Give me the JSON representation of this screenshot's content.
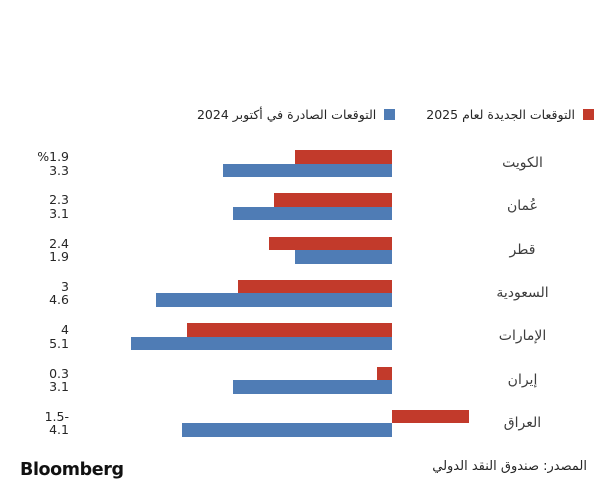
{
  "chart_data": {
    "type": "bar",
    "orientation": "horizontal",
    "direction": "rtl",
    "unit": "%",
    "title": "",
    "categories": [
      "الكويت",
      "عُمان",
      "قطر",
      "السعودية",
      "الإمارات",
      "إيران",
      "العراق"
    ],
    "series": [
      {
        "name": "التوقعات الجديدة لعام 2025",
        "color": "#c23a2b",
        "values": [
          1.9,
          2.3,
          2.4,
          3,
          4,
          0.3,
          -1.5
        ],
        "labels": [
          "%1.9",
          "2.3",
          "2.4",
          "3",
          "4",
          "0.3",
          "1.5-"
        ]
      },
      {
        "name": "التوقعات الصادرة في أكتوبر 2024",
        "color": "#4f7cb5",
        "values": [
          3.3,
          3.1,
          1.9,
          4.6,
          5.1,
          3.1,
          4.1
        ],
        "labels": [
          "3.3",
          "3.1",
          "1.9",
          "4.6",
          "5.1",
          "3.1",
          "4.1"
        ]
      }
    ],
    "xlim": [
      -1.6,
      5.2
    ],
    "baseline": 0,
    "grid": false,
    "legend_position": "top-right"
  },
  "footer": {
    "brand": "Bloomberg",
    "source": "المصدر: صندوق النقد الدولي"
  }
}
